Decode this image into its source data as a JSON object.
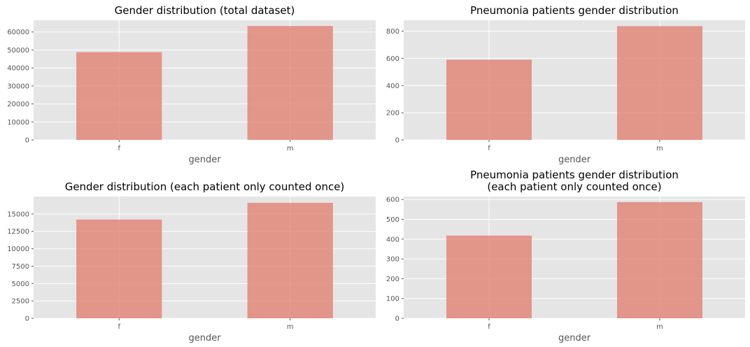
{
  "chart_data": [
    {
      "type": "bar",
      "title_lines": [
        "Gender distribution (total dataset)"
      ],
      "xlabel": "gender",
      "ylabel": "",
      "categories": [
        "f",
        "m"
      ],
      "values": [
        48800,
        63300
      ],
      "ylim": [
        0,
        66500
      ],
      "yticks": [
        0,
        10000,
        20000,
        30000,
        40000,
        50000,
        60000
      ],
      "grid": true,
      "colors": {
        "bar": "#e07a6a",
        "background": "#e5e5e5",
        "grid": "#ffffff"
      }
    },
    {
      "type": "bar",
      "title_lines": [
        "Pneumonia patients gender distribution"
      ],
      "xlabel": "gender",
      "ylabel": "",
      "categories": [
        "f",
        "m"
      ],
      "values": [
        590,
        837
      ],
      "ylim": [
        0,
        880
      ],
      "yticks": [
        0,
        200,
        400,
        600,
        800
      ],
      "grid": true,
      "colors": {
        "bar": "#e07a6a",
        "background": "#e5e5e5",
        "grid": "#ffffff"
      }
    },
    {
      "type": "bar",
      "title_lines": [
        "Gender distribution (each patient only counted once)"
      ],
      "xlabel": "gender",
      "ylabel": "",
      "categories": [
        "f",
        "m"
      ],
      "values": [
        14200,
        16600
      ],
      "ylim": [
        0,
        17500
      ],
      "yticks": [
        0,
        2500,
        5000,
        7500,
        10000,
        12500,
        15000
      ],
      "grid": true,
      "colors": {
        "bar": "#e07a6a",
        "background": "#e5e5e5",
        "grid": "#ffffff"
      }
    },
    {
      "type": "bar",
      "title_lines": [
        "Pneumonia patients gender distribution",
        "(each patient only counted once)"
      ],
      "xlabel": "gender",
      "ylabel": "",
      "categories": [
        "f",
        "m"
      ],
      "values": [
        418,
        587
      ],
      "ylim": [
        0,
        615
      ],
      "yticks": [
        0,
        100,
        200,
        300,
        400,
        500,
        600
      ],
      "grid": true,
      "colors": {
        "bar": "#e07a6a",
        "background": "#e5e5e5",
        "grid": "#ffffff"
      }
    }
  ]
}
